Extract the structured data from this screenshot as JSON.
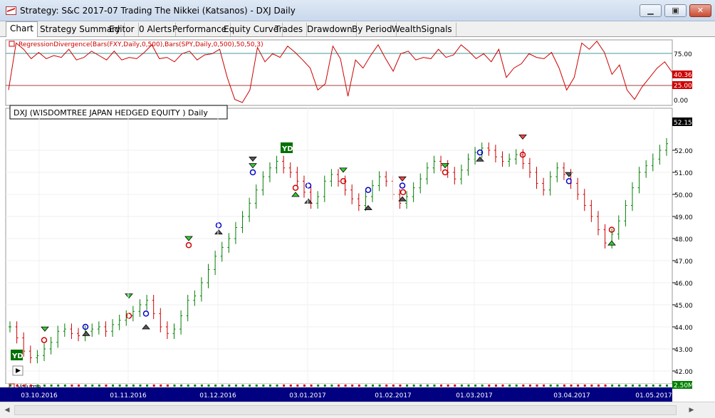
{
  "window": {
    "title": "Strategy: S&C 2017-07 Trading The Nikkei (Katsanos) - DXJ Daily",
    "minimize_icon": "minimize-icon",
    "maximize_icon": "restore-icon",
    "close_icon": "close-icon"
  },
  "tabs": [
    {
      "label": "Chart",
      "active": true
    },
    {
      "label": "Strategy Summary",
      "active": false
    },
    {
      "label": "Editor",
      "active": false
    },
    {
      "label": "0 Alerts",
      "active": false
    },
    {
      "label": "Performance",
      "active": false
    },
    {
      "label": "Equity Curve",
      "active": false
    },
    {
      "label": "Trades",
      "active": false
    },
    {
      "label": "Drawdown",
      "active": false
    },
    {
      "label": "By Period",
      "active": false
    },
    {
      "label": "WealthSignals",
      "active": false
    }
  ],
  "indicator_pane": {
    "label": "RegressionDivergence(Bars(FXY,Daily,0,500),Bars(SPY,Daily,0,500),50,50,3)",
    "levels": [
      "75.00",
      "25.00",
      "0.00"
    ],
    "current_value": "40.36",
    "line_color": "#cc0000",
    "level_color": "#4a9a9a"
  },
  "price_pane": {
    "label": "DXJ (WISDOMTREE JAPAN HEDGED EQUITY ) Daily",
    "current_price": "52.15",
    "y_ticks": [
      "52.00",
      "51.00",
      "50.00",
      "49.00",
      "48.00",
      "47.00",
      "46.00",
      "45.00",
      "44.00",
      "43.00",
      "42.00"
    ],
    "up_color": "#008000",
    "down_color": "#cc0000",
    "markers": [
      "YD",
      "YD"
    ]
  },
  "volume_pane": {
    "label": "Volume",
    "current_value": "2.50M"
  },
  "x_axis": {
    "dates": [
      "03.10.2016",
      "01.11.2016",
      "01.12.2016",
      "03.01.2017",
      "01.02.2017",
      "01.03.2017",
      "03.04.2017",
      "01.05.2017"
    ],
    "background": "#000080"
  },
  "chart_data": {
    "type": "line",
    "series": [
      {
        "values": [
          44.0,
          43.5,
          42.9,
          42.6,
          42.7,
          43.0,
          43.3,
          43.8,
          43.9,
          43.7,
          43.6,
          43.8,
          43.9,
          44.0,
          43.8,
          44.1,
          44.3,
          44.5,
          44.7,
          45.0,
          45.2,
          44.6,
          44.0,
          43.7,
          43.9,
          44.5,
          45.2,
          45.4,
          46.0,
          46.6,
          47.2,
          47.6,
          48.0,
          48.5,
          49.0,
          49.6,
          50.2,
          50.8,
          51.2,
          51.5,
          51.2,
          51.0,
          50.6,
          50.1,
          49.6,
          49.9,
          50.6,
          50.9,
          50.6,
          50.2,
          49.8,
          49.5,
          49.9,
          50.4,
          50.8,
          50.6,
          50.0,
          49.6,
          49.9,
          50.3,
          50.7,
          51.2,
          51.5,
          51.3,
          51.0,
          50.7,
          51.1,
          51.6,
          51.9,
          52.1,
          52.0,
          51.7,
          51.5,
          51.6,
          51.8,
          51.4,
          51.0,
          50.5,
          50.2,
          50.8,
          51.2,
          50.9,
          50.5,
          50.0,
          49.5,
          49.0,
          48.4,
          47.8,
          48.2,
          48.8,
          49.5,
          50.3,
          51.0,
          51.3,
          51.6,
          52.0,
          52.3
        ]
      }
    ]
  }
}
